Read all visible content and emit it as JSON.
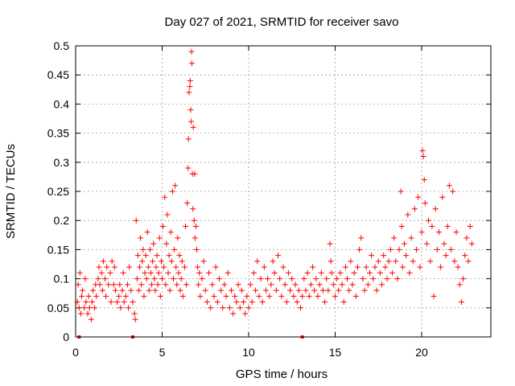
{
  "chart_data": {
    "type": "scatter",
    "title": "Day 027 of 2021, SRMTID for receiver savo",
    "xlabel": "GPS time / hours",
    "ylabel": "SRMTID / TECUs",
    "xlim": [
      0,
      24
    ],
    "ylim": [
      0,
      0.5
    ],
    "x_ticks": [
      0,
      5,
      10,
      15,
      20
    ],
    "x_tick_labels": [
      "0",
      "5",
      "10",
      "15",
      "20"
    ],
    "y_ticks": [
      0,
      0.05,
      0.1,
      0.15,
      0.2,
      0.25,
      0.3,
      0.35,
      0.4,
      0.45,
      0.5
    ],
    "y_tick_labels": [
      "0",
      "0.05",
      "0.1",
      "0.15",
      "0.2",
      "0.25",
      "0.3",
      "0.35",
      "0.4",
      "0.45",
      "0.5"
    ],
    "grid": true,
    "marker": "plus",
    "color": "#ff0000",
    "baseline_markers_x": [
      0.2,
      3.3,
      13.1
    ],
    "series": [
      {
        "name": "SRMTID",
        "points": [
          [
            0.1,
            0.06
          ],
          [
            0.15,
            0.09
          ],
          [
            0.2,
            0.05
          ],
          [
            0.25,
            0.11
          ],
          [
            0.3,
            0.04
          ],
          [
            0.35,
            0.07
          ],
          [
            0.4,
            0.08
          ],
          [
            0.5,
            0.05
          ],
          [
            0.55,
            0.1
          ],
          [
            0.6,
            0.06
          ],
          [
            0.7,
            0.04
          ],
          [
            0.75,
            0.07
          ],
          [
            0.8,
            0.05
          ],
          [
            0.9,
            0.03
          ],
          [
            0.95,
            0.06
          ],
          [
            1.0,
            0.08
          ],
          [
            1.1,
            0.05
          ],
          [
            1.15,
            0.09
          ],
          [
            1.2,
            0.07
          ],
          [
            1.3,
            0.1
          ],
          [
            1.35,
            0.12
          ],
          [
            1.4,
            0.09
          ],
          [
            1.5,
            0.11
          ],
          [
            1.55,
            0.08
          ],
          [
            1.6,
            0.13
          ],
          [
            1.7,
            0.1
          ],
          [
            1.75,
            0.07
          ],
          [
            1.8,
            0.12
          ],
          [
            1.9,
            0.09
          ],
          [
            2.0,
            0.11
          ],
          [
            2.05,
            0.06
          ],
          [
            2.1,
            0.13
          ],
          [
            2.2,
            0.09
          ],
          [
            2.25,
            0.12
          ],
          [
            2.3,
            0.08
          ],
          [
            2.4,
            0.06
          ],
          [
            2.5,
            0.07
          ],
          [
            2.55,
            0.09
          ],
          [
            2.6,
            0.05
          ],
          [
            2.7,
            0.08
          ],
          [
            2.75,
            0.11
          ],
          [
            2.8,
            0.06
          ],
          [
            2.9,
            0.07
          ],
          [
            3.0,
            0.09
          ],
          [
            3.05,
            0.05
          ],
          [
            3.1,
            0.12
          ],
          [
            3.2,
            0.08
          ],
          [
            3.3,
            0.06
          ],
          [
            3.4,
            0.04
          ],
          [
            3.45,
            0.03
          ],
          [
            3.5,
            0.2
          ],
          [
            3.55,
            0.1
          ],
          [
            3.6,
            0.14
          ],
          [
            3.65,
            0.08
          ],
          [
            3.7,
            0.12
          ],
          [
            3.75,
            0.17
          ],
          [
            3.8,
            0.09
          ],
          [
            3.85,
            0.13
          ],
          [
            3.9,
            0.15
          ],
          [
            3.95,
            0.07
          ],
          [
            4.0,
            0.11
          ],
          [
            4.05,
            0.14
          ],
          [
            4.1,
            0.1
          ],
          [
            4.15,
            0.18
          ],
          [
            4.2,
            0.12
          ],
          [
            4.25,
            0.08
          ],
          [
            4.3,
            0.15
          ],
          [
            4.35,
            0.11
          ],
          [
            4.4,
            0.09
          ],
          [
            4.45,
            0.13
          ],
          [
            4.5,
            0.16
          ],
          [
            4.55,
            0.1
          ],
          [
            4.6,
            0.08
          ],
          [
            4.65,
            0.12
          ],
          [
            4.7,
            0.14
          ],
          [
            4.75,
            0.09
          ],
          [
            4.8,
            0.11
          ],
          [
            4.85,
            0.17
          ],
          [
            4.9,
            0.07
          ],
          [
            4.95,
            0.13
          ],
          [
            5.0,
            0.1
          ],
          [
            5.05,
            0.19
          ],
          [
            5.1,
            0.12
          ],
          [
            5.15,
            0.24
          ],
          [
            5.2,
            0.09
          ],
          [
            5.25,
            0.16
          ],
          [
            5.3,
            0.21
          ],
          [
            5.35,
            0.11
          ],
          [
            5.4,
            0.14
          ],
          [
            5.45,
            0.08
          ],
          [
            5.5,
            0.18
          ],
          [
            5.55,
            0.13
          ],
          [
            5.6,
            0.25
          ],
          [
            5.65,
            0.1
          ],
          [
            5.7,
            0.15
          ],
          [
            5.75,
            0.26
          ],
          [
            5.8,
            0.12
          ],
          [
            5.85,
            0.09
          ],
          [
            5.9,
            0.17
          ],
          [
            5.95,
            0.11
          ],
          [
            6.0,
            0.14
          ],
          [
            6.05,
            0.08
          ],
          [
            6.1,
            0.1
          ],
          [
            6.15,
            0.13
          ],
          [
            6.2,
            0.07
          ],
          [
            6.3,
            0.12
          ],
          [
            6.35,
            0.19
          ],
          [
            6.4,
            0.09
          ],
          [
            6.45,
            0.23
          ],
          [
            6.5,
            0.29
          ],
          [
            6.52,
            0.34
          ],
          [
            6.55,
            0.42
          ],
          [
            6.6,
            0.43
          ],
          [
            6.62,
            0.44
          ],
          [
            6.65,
            0.39
          ],
          [
            6.68,
            0.37
          ],
          [
            6.7,
            0.49
          ],
          [
            6.72,
            0.47
          ],
          [
            6.75,
            0.28
          ],
          [
            6.78,
            0.22
          ],
          [
            6.8,
            0.36
          ],
          [
            6.85,
            0.2
          ],
          [
            6.88,
            0.28
          ],
          [
            6.9,
            0.17
          ],
          [
            6.95,
            0.19
          ],
          [
            7.0,
            0.15
          ],
          [
            7.05,
            0.12
          ],
          [
            7.1,
            0.09
          ],
          [
            7.15,
            0.11
          ],
          [
            7.2,
            0.07
          ],
          [
            7.3,
            0.1
          ],
          [
            7.4,
            0.13
          ],
          [
            7.5,
            0.08
          ],
          [
            7.6,
            0.06
          ],
          [
            7.7,
            0.11
          ],
          [
            7.8,
            0.05
          ],
          [
            7.9,
            0.09
          ],
          [
            8.0,
            0.07
          ],
          [
            8.1,
            0.12
          ],
          [
            8.2,
            0.06
          ],
          [
            8.3,
            0.1
          ],
          [
            8.4,
            0.08
          ],
          [
            8.5,
            0.05
          ],
          [
            8.6,
            0.09
          ],
          [
            8.7,
            0.07
          ],
          [
            8.8,
            0.11
          ],
          [
            8.9,
            0.05
          ],
          [
            9.0,
            0.08
          ],
          [
            9.1,
            0.04
          ],
          [
            9.2,
            0.07
          ],
          [
            9.3,
            0.06
          ],
          [
            9.4,
            0.09
          ],
          [
            9.5,
            0.05
          ],
          [
            9.6,
            0.08
          ],
          [
            9.7,
            0.06
          ],
          [
            9.8,
            0.04
          ],
          [
            9.9,
            0.07
          ],
          [
            10.0,
            0.05
          ],
          [
            10.1,
            0.09
          ],
          [
            10.2,
            0.06
          ],
          [
            10.3,
            0.11
          ],
          [
            10.4,
            0.08
          ],
          [
            10.5,
            0.13
          ],
          [
            10.6,
            0.07
          ],
          [
            10.7,
            0.1
          ],
          [
            10.8,
            0.06
          ],
          [
            10.9,
            0.12
          ],
          [
            11.0,
            0.08
          ],
          [
            11.1,
            0.1
          ],
          [
            11.2,
            0.07
          ],
          [
            11.3,
            0.09
          ],
          [
            11.4,
            0.13
          ],
          [
            11.5,
            0.11
          ],
          [
            11.6,
            0.08
          ],
          [
            11.7,
            0.14
          ],
          [
            11.8,
            0.1
          ],
          [
            11.9,
            0.07
          ],
          [
            12.0,
            0.12
          ],
          [
            12.1,
            0.09
          ],
          [
            12.2,
            0.06
          ],
          [
            12.3,
            0.11
          ],
          [
            12.4,
            0.08
          ],
          [
            12.5,
            0.1
          ],
          [
            12.6,
            0.07
          ],
          [
            12.7,
            0.09
          ],
          [
            12.8,
            0.06
          ],
          [
            12.9,
            0.08
          ],
          [
            13.0,
            0.05
          ],
          [
            13.1,
            0.07
          ],
          [
            13.2,
            0.1
          ],
          [
            13.3,
            0.08
          ],
          [
            13.4,
            0.11
          ],
          [
            13.5,
            0.07
          ],
          [
            13.6,
            0.09
          ],
          [
            13.7,
            0.12
          ],
          [
            13.8,
            0.08
          ],
          [
            13.9,
            0.1
          ],
          [
            14.0,
            0.07
          ],
          [
            14.1,
            0.09
          ],
          [
            14.2,
            0.11
          ],
          [
            14.3,
            0.08
          ],
          [
            14.4,
            0.06
          ],
          [
            14.5,
            0.1
          ],
          [
            14.6,
            0.08
          ],
          [
            14.7,
            0.16
          ],
          [
            14.75,
            0.13
          ],
          [
            14.8,
            0.11
          ],
          [
            14.9,
            0.09
          ],
          [
            15.0,
            0.07
          ],
          [
            15.1,
            0.1
          ],
          [
            15.2,
            0.08
          ],
          [
            15.3,
            0.11
          ],
          [
            15.4,
            0.09
          ],
          [
            15.5,
            0.06
          ],
          [
            15.6,
            0.12
          ],
          [
            15.7,
            0.1
          ],
          [
            15.8,
            0.08
          ],
          [
            15.9,
            0.13
          ],
          [
            16.0,
            0.09
          ],
          [
            16.1,
            0.11
          ],
          [
            16.2,
            0.07
          ],
          [
            16.3,
            0.12
          ],
          [
            16.4,
            0.15
          ],
          [
            16.5,
            0.17
          ],
          [
            16.6,
            0.1
          ],
          [
            16.7,
            0.08
          ],
          [
            16.8,
            0.12
          ],
          [
            16.9,
            0.09
          ],
          [
            17.0,
            0.11
          ],
          [
            17.1,
            0.14
          ],
          [
            17.2,
            0.1
          ],
          [
            17.3,
            0.12
          ],
          [
            17.4,
            0.08
          ],
          [
            17.5,
            0.13
          ],
          [
            17.6,
            0.11
          ],
          [
            17.7,
            0.09
          ],
          [
            17.8,
            0.14
          ],
          [
            17.9,
            0.12
          ],
          [
            18.0,
            0.1
          ],
          [
            18.1,
            0.13
          ],
          [
            18.2,
            0.15
          ],
          [
            18.3,
            0.11
          ],
          [
            18.4,
            0.17
          ],
          [
            18.5,
            0.13
          ],
          [
            18.6,
            0.1
          ],
          [
            18.7,
            0.15
          ],
          [
            18.8,
            0.25
          ],
          [
            18.85,
            0.19
          ],
          [
            18.9,
            0.12
          ],
          [
            19.0,
            0.16
          ],
          [
            19.1,
            0.14
          ],
          [
            19.2,
            0.21
          ],
          [
            19.3,
            0.11
          ],
          [
            19.4,
            0.17
          ],
          [
            19.5,
            0.13
          ],
          [
            19.6,
            0.22
          ],
          [
            19.7,
            0.15
          ],
          [
            19.8,
            0.24
          ],
          [
            19.9,
            0.12
          ],
          [
            20.0,
            0.18
          ],
          [
            20.05,
            0.32
          ],
          [
            20.1,
            0.31
          ],
          [
            20.15,
            0.27
          ],
          [
            20.2,
            0.23
          ],
          [
            20.3,
            0.16
          ],
          [
            20.4,
            0.2
          ],
          [
            20.5,
            0.13
          ],
          [
            20.6,
            0.19
          ],
          [
            20.7,
            0.07
          ],
          [
            20.8,
            0.22
          ],
          [
            20.9,
            0.15
          ],
          [
            21.0,
            0.18
          ],
          [
            21.1,
            0.12
          ],
          [
            21.2,
            0.24
          ],
          [
            21.3,
            0.16
          ],
          [
            21.4,
            0.14
          ],
          [
            21.5,
            0.19
          ],
          [
            21.6,
            0.26
          ],
          [
            21.7,
            0.15
          ],
          [
            21.8,
            0.25
          ],
          [
            21.9,
            0.13
          ],
          [
            22.0,
            0.18
          ],
          [
            22.1,
            0.12
          ],
          [
            22.2,
            0.09
          ],
          [
            22.3,
            0.06
          ],
          [
            22.4,
            0.1
          ],
          [
            22.5,
            0.14
          ],
          [
            22.6,
            0.17
          ],
          [
            22.7,
            0.13
          ],
          [
            22.8,
            0.19
          ],
          [
            22.9,
            0.16
          ]
        ]
      }
    ]
  }
}
